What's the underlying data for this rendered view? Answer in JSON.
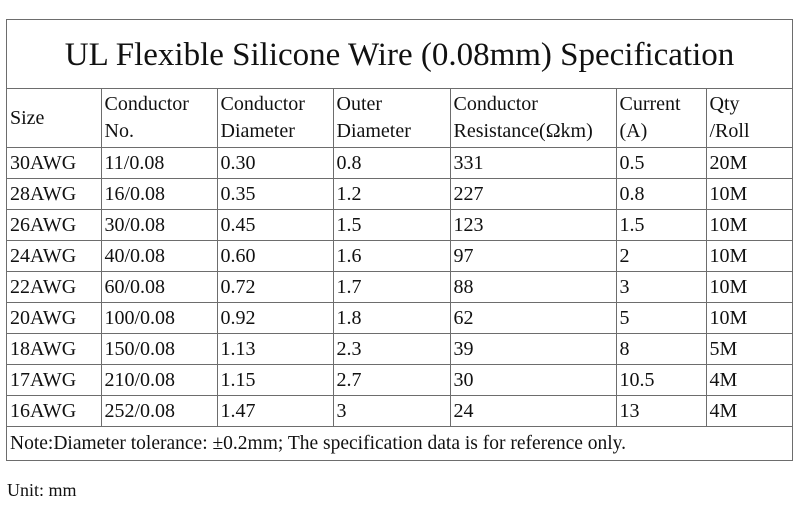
{
  "title": "UL Flexible Silicone Wire (0.08mm) Specification",
  "headers": [
    [
      "Size",
      ""
    ],
    [
      "Conductor",
      "No."
    ],
    [
      "Conductor",
      "Diameter"
    ],
    [
      "Outer",
      "Diameter"
    ],
    [
      "Conductor",
      "Resistance(Ωkm)"
    ],
    [
      "Current",
      "(A)"
    ],
    [
      "Qty",
      "/Roll"
    ]
  ],
  "rows": [
    [
      "30AWG",
      "11/0.08",
      "0.30",
      "0.8",
      "331",
      "0.5",
      "20M"
    ],
    [
      "28AWG",
      "16/0.08",
      "0.35",
      "1.2",
      "227",
      "0.8",
      "10M"
    ],
    [
      "26AWG",
      "30/0.08",
      "0.45",
      "1.5",
      "123",
      "1.5",
      "10M"
    ],
    [
      "24AWG",
      "40/0.08",
      "0.60",
      "1.6",
      "97",
      "2",
      "10M"
    ],
    [
      "22AWG",
      "60/0.08",
      "0.72",
      "1.7",
      "88",
      "3",
      "10M"
    ],
    [
      "20AWG",
      "100/0.08",
      "0.92",
      "1.8",
      "62",
      "5",
      "10M"
    ],
    [
      "18AWG",
      "150/0.08",
      "1.13",
      "2.3",
      "39",
      "8",
      "5M"
    ],
    [
      "17AWG",
      "210/0.08",
      "1.15",
      "2.7",
      "30",
      "10.5",
      "4M"
    ],
    [
      "16AWG",
      "252/0.08",
      "1.47",
      "3",
      "24",
      "13",
      "4M"
    ]
  ],
  "note": "Note:Diameter tolerance: ±0.2mm; The specification data is for reference only.",
  "unit": "Unit: mm"
}
